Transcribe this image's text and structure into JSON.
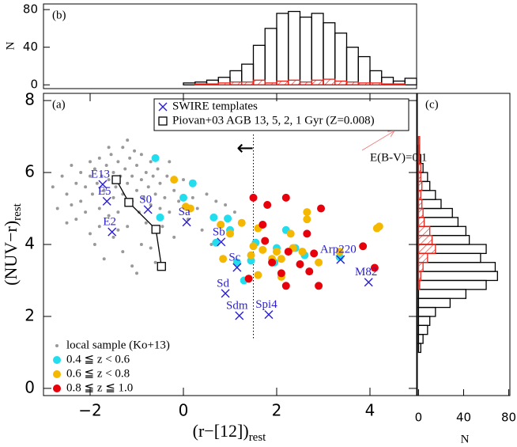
{
  "chart_data": [
    {
      "type": "histogram",
      "panel_label": "(b)",
      "y_label": "N",
      "xlim": [
        -3,
        5
      ],
      "ylim": [
        -4,
        86
      ],
      "yticks": [
        0,
        40,
        80
      ],
      "bins": [
        0,
        0.25,
        0.5,
        0.75,
        1,
        1.25,
        1.5,
        1.75,
        2,
        2.25,
        2.5,
        2.75,
        3,
        3.25,
        3.5,
        3.75,
        4,
        4.25,
        4.5,
        4.75,
        5
      ],
      "series": [
        {
          "color": "#000000",
          "hatch": false,
          "values": [
            2,
            3,
            5,
            8,
            15,
            22,
            42,
            60,
            76,
            78,
            72,
            76,
            66,
            55,
            40,
            30,
            15,
            8,
            4,
            7
          ]
        },
        {
          "color": "#e8231a",
          "hatch": true,
          "values": [
            0,
            1,
            1,
            2,
            3,
            3,
            5,
            2,
            4,
            5,
            3,
            5,
            6,
            4,
            3,
            2,
            2,
            1,
            1,
            0
          ]
        }
      ]
    },
    {
      "type": "scatter",
      "panel_label": "(a)",
      "x_label": "(r−[12])",
      "x_label_sub": "rest",
      "y_label": "(NUV−r)",
      "y_label_sub": "rest",
      "xlim": [
        -3,
        5
      ],
      "ylim": [
        -0.2,
        8.2
      ],
      "xticks": [
        {
          "value": -2,
          "label": "−2"
        },
        0,
        2,
        4
      ],
      "yticks": [
        0,
        2,
        4,
        6,
        8
      ],
      "vline": 1.5,
      "annotation": "E(B-V)=0.1",
      "series": [
        {
          "name": "local sample (Ko+13)",
          "color": "#999999",
          "marker": "dot",
          "x": [
            -2.6,
            -2.5,
            -2.4,
            -2.3,
            -2.2,
            -2.2,
            -2.1,
            -2.0,
            -2.0,
            -1.95,
            -1.9,
            -1.85,
            -1.8,
            -1.8,
            -1.75,
            -1.7,
            -1.65,
            -1.6,
            -1.6,
            -1.55,
            -1.5,
            -1.5,
            -1.45,
            -1.4,
            -1.4,
            -1.35,
            -1.3,
            -1.3,
            -1.25,
            -1.2,
            -1.2,
            -1.15,
            -1.1,
            -1.1,
            -1.05,
            -1.0,
            -1.0,
            -0.95,
            -0.9,
            -0.9,
            -0.85,
            -0.8,
            -0.8,
            -0.75,
            -0.7,
            -0.7,
            -0.65,
            -0.6,
            -0.55,
            -0.5,
            -0.5,
            -0.45,
            -0.4,
            -0.35,
            -0.3,
            -0.2,
            -0.1,
            0.0,
            0.1,
            0.2,
            0.3,
            0.5,
            0.7,
            0.9,
            1.1,
            0.4,
            -2.7,
            -2.8,
            -2.3,
            -2.0,
            -1.9,
            -1.7,
            -1.5,
            -1.3,
            -1.1,
            -0.9,
            -0.7,
            -0.6,
            -1.2,
            -1.6,
            -2.5,
            -2.1,
            -1.4,
            -0.3,
            0.6,
            -1.0,
            -1.8,
            -2.4,
            -0.2,
            0.8
          ],
          "y": [
            5.9,
            5.4,
            6.2,
            5.7,
            6.0,
            5.2,
            5.6,
            6.3,
            5.9,
            5.4,
            6.1,
            5.7,
            5.0,
            6.4,
            5.9,
            5.5,
            6.2,
            4.8,
            5.8,
            6.5,
            5.3,
            6.0,
            5.6,
            6.3,
            4.9,
            5.9,
            5.4,
            6.7,
            6.1,
            5.7,
            4.5,
            6.4,
            5.2,
            5.9,
            6.6,
            5.5,
            6.2,
            4.9,
            5.8,
            6.5,
            5.3,
            6.0,
            4.6,
            5.6,
            6.3,
            5.1,
            5.9,
            5.4,
            6.1,
            5.0,
            5.7,
            4.5,
            5.3,
            5.9,
            4.9,
            5.5,
            5.2,
            5.8,
            4.7,
            5.3,
            5.0,
            5.4,
            5.2,
            5.1,
            4.9,
            4.4,
            5.0,
            5.6,
            4.7,
            4.3,
            4.0,
            3.6,
            4.2,
            3.8,
            3.4,
            4.0,
            3.9,
            3.5,
            6.9,
            6.7,
            4.6,
            4.9,
            4.4,
            6.3,
            4.0,
            3.2,
            4.5,
            5.1,
            4.2,
            4.6
          ]
        },
        {
          "name": "0.4 ≦ z < 0.6",
          "color": "#22ddee",
          "marker": "circle",
          "x": [
            -0.6,
            0.2,
            0.0,
            -0.5,
            0.65,
            0.95,
            0.7,
            1.15,
            1.45,
            1.95,
            2.2,
            2.4,
            1.55,
            1.3,
            3.35,
            2.6,
            1.0,
            2.0
          ],
          "y": [
            6.4,
            5.7,
            5.3,
            4.75,
            4.75,
            4.72,
            4.05,
            3.5,
            3.55,
            3.5,
            4.4,
            3.9,
            4.05,
            3.0,
            3.65,
            3.7,
            4.4,
            3.9
          ]
        },
        {
          "name": "0.6 ≦ z < 0.8",
          "color": "#f5b800",
          "marker": "circle",
          "x": [
            -0.2,
            0.05,
            0.15,
            0.8,
            1.0,
            1.25,
            1.6,
            2.3,
            2.65,
            2.65,
            1.5,
            1.45,
            1.7,
            2.0,
            2.1,
            1.9,
            2.35,
            2.55,
            2.9,
            3.35,
            4.15,
            4.2,
            0.85,
            1.6,
            2.1
          ],
          "y": [
            5.8,
            5.05,
            5.0,
            4.55,
            4.3,
            4.6,
            4.45,
            4.3,
            4.7,
            4.9,
            3.95,
            3.7,
            3.85,
            3.8,
            3.6,
            3.6,
            3.9,
            3.8,
            3.5,
            3.8,
            4.45,
            4.5,
            3.6,
            3.15,
            3.1
          ]
        },
        {
          "name": "0.8 ≦ z ≦ 1.0",
          "color": "#e8000b",
          "marker": "circle",
          "x": [
            1.5,
            1.8,
            2.2,
            2.95,
            2.65,
            1.75,
            2.25,
            1.9,
            2.5,
            2.7,
            2.1,
            2.9,
            1.4,
            4.1,
            1.7,
            2.8,
            3.85,
            2.2
          ],
          "y": [
            5.3,
            5.1,
            5.3,
            5.0,
            4.3,
            4.1,
            3.8,
            3.5,
            3.45,
            3.25,
            3.2,
            2.85,
            3.05,
            3.35,
            4.55,
            3.75,
            3.95,
            2.85
          ]
        },
        {
          "name": "SWIRE templates",
          "color": "#2a1fd0",
          "marker": "x",
          "labels": [
            "E13",
            "E5",
            "E2",
            "S0",
            "Sa",
            "Sb",
            "Sc",
            "Sd",
            "Sdm",
            "Spi4",
            "Arp220",
            "M82"
          ],
          "x": [
            -1.73,
            -1.64,
            -1.53,
            -0.76,
            0.07,
            0.81,
            1.15,
            0.9,
            1.2,
            1.83,
            3.37,
            3.97
          ],
          "y": [
            5.67,
            5.2,
            4.35,
            4.97,
            4.62,
            4.07,
            3.36,
            2.64,
            2.02,
            2.05,
            3.58,
            2.95
          ]
        },
        {
          "name": "Piovan+03 AGB 13, 5, 2, 1 Gyr (Z=0.008)",
          "color": "#000000",
          "marker": "square",
          "x": [
            -1.44,
            -1.17,
            -0.59,
            -0.47
          ],
          "y": [
            5.8,
            5.17,
            4.42,
            3.39
          ]
        }
      ]
    },
    {
      "type": "histogram",
      "orientation": "horizontal",
      "panel_label": "(c)",
      "x_label": "N",
      "xlim": [
        -1,
        81
      ],
      "xticks": [
        0,
        40,
        80
      ],
      "ylim": [
        -0.2,
        8.2
      ],
      "bins": [
        1,
        1.25,
        1.5,
        1.75,
        2,
        2.25,
        2.5,
        2.75,
        3,
        3.25,
        3.5,
        3.75,
        4,
        4.25,
        4.5,
        4.75,
        5,
        5.25,
        5.5,
        5.75,
        6,
        6.25,
        6.5,
        6.75,
        7
      ],
      "series": [
        {
          "color": "#000000",
          "hatch": false,
          "values": [
            2,
            4,
            8,
            10,
            15,
            28,
            42,
            60,
            70,
            68,
            55,
            60,
            45,
            42,
            35,
            30,
            20,
            15,
            10,
            8,
            4,
            2,
            1,
            0
          ]
        },
        {
          "color": "#e8231a",
          "hatch": true,
          "values": [
            0,
            0,
            0,
            0,
            0,
            0,
            0,
            1,
            2,
            4,
            8,
            15,
            12,
            10,
            5,
            4,
            3,
            2,
            3,
            2,
            2,
            1,
            1,
            1
          ]
        }
      ]
    }
  ]
}
